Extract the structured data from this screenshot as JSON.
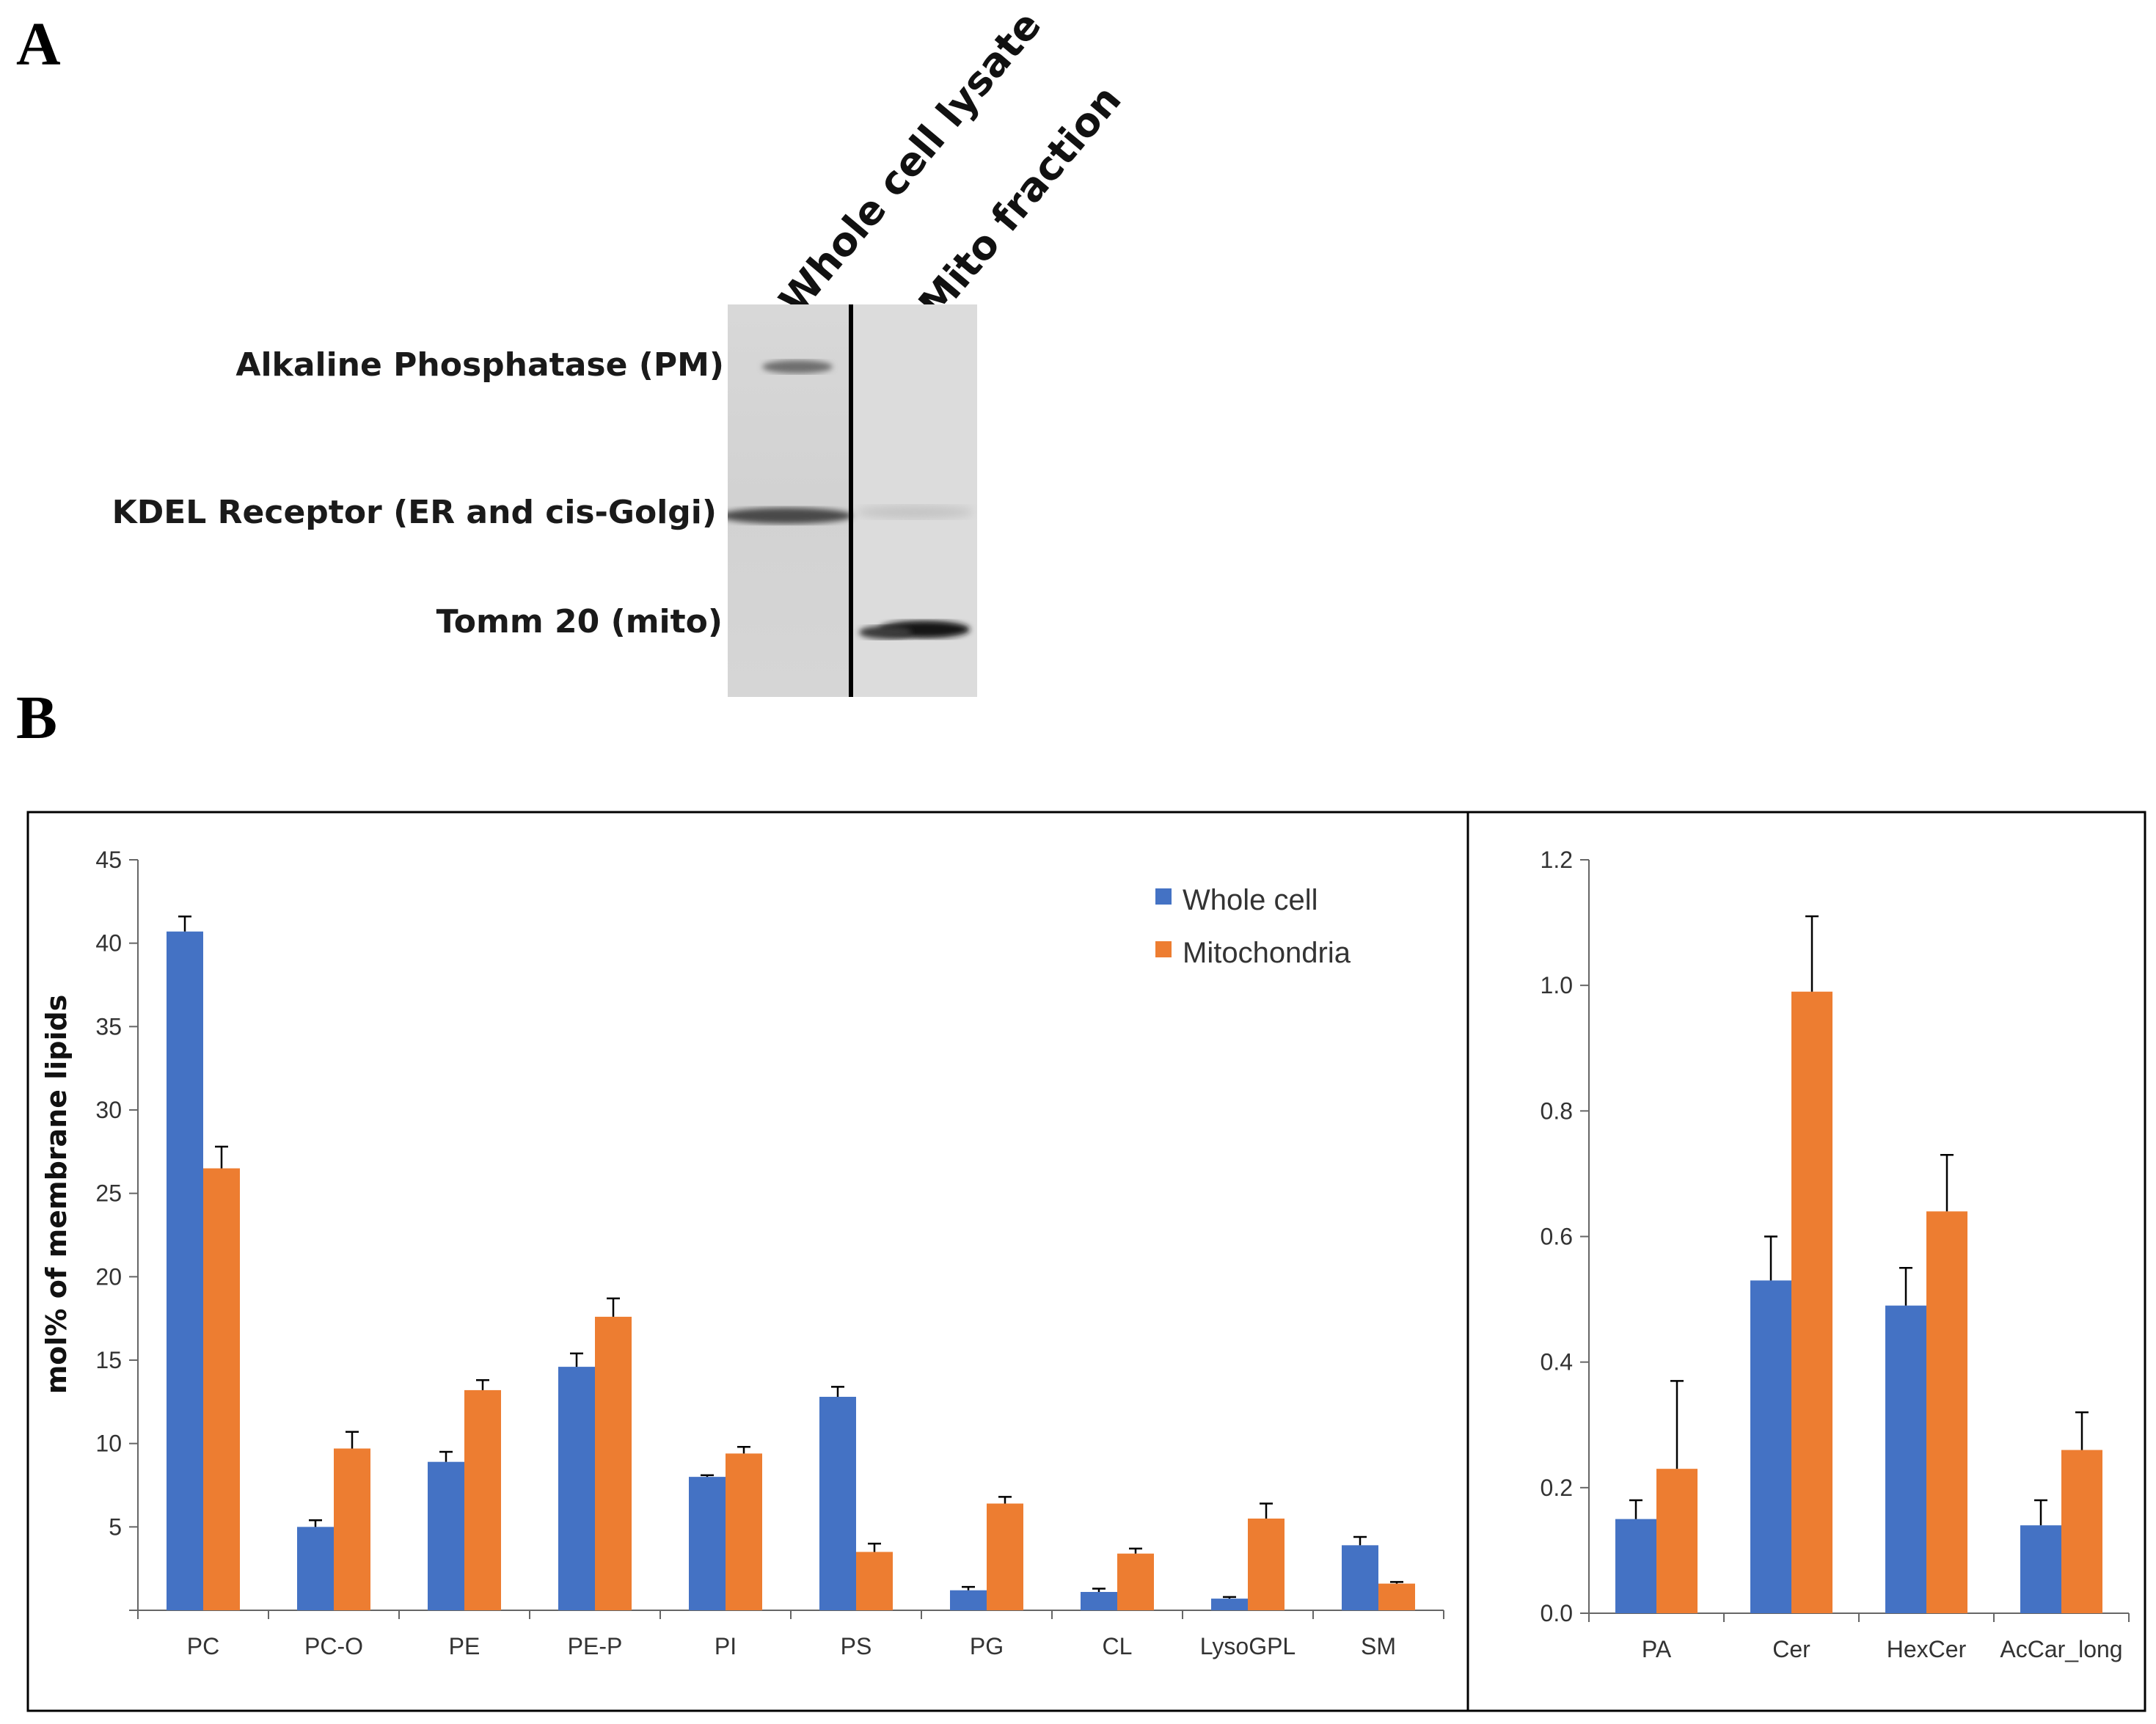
{
  "panel_a": {
    "letter": "A",
    "lanes": [
      "Whole cell lysate",
      "Mito fraction"
    ],
    "bands": [
      "Alkaline  Phosphatase (PM)",
      "KDEL  Receptor (ER and cis-Golgi)",
      "Tomm 20 (mito)"
    ]
  },
  "panel_b": {
    "letter": "B"
  },
  "colors": {
    "whole_cell": "#4472C4",
    "mitochondria": "#ED7D31"
  },
  "chart_data": [
    {
      "type": "bar",
      "title": "",
      "xlabel": "",
      "ylabel": "mol% of membrane lipids",
      "ylim": [
        0,
        45
      ],
      "yticks": [
        "",
        "5",
        "10",
        "15",
        "20",
        "25",
        "30",
        "35",
        "40",
        "45"
      ],
      "categories": [
        "PC",
        "PC-O",
        "PE",
        "PE-P",
        "PI",
        "PS",
        "PG",
        "CL",
        "LysoGPL",
        "SM"
      ],
      "series": [
        {
          "name": "Whole cell",
          "values": [
            40.7,
            5.0,
            8.9,
            14.6,
            8.0,
            12.8,
            1.2,
            1.1,
            0.7,
            3.9
          ],
          "errors": [
            0.9,
            0.4,
            0.6,
            0.8,
            0.1,
            0.6,
            0.2,
            0.2,
            0.1,
            0.5
          ]
        },
        {
          "name": "Mitochondria",
          "values": [
            26.5,
            9.7,
            13.2,
            17.6,
            9.4,
            3.5,
            6.4,
            3.4,
            5.5,
            1.6
          ],
          "errors": [
            1.3,
            1.0,
            0.6,
            1.1,
            0.4,
            0.5,
            0.4,
            0.3,
            0.9,
            0.1
          ]
        }
      ],
      "legend": "top-right"
    },
    {
      "type": "bar",
      "title": "",
      "xlabel": "",
      "ylabel": "",
      "ylim": [
        0,
        1.2
      ],
      "yticks": [
        "0.0",
        "0.2",
        "0.4",
        "0.6",
        "0.8",
        "1.0",
        "1.2"
      ],
      "categories": [
        "PA",
        "Cer",
        "HexCer",
        "AcCar_long"
      ],
      "series": [
        {
          "name": "Whole cell",
          "values": [
            0.15,
            0.53,
            0.49,
            0.14
          ],
          "errors": [
            0.03,
            0.07,
            0.06,
            0.04
          ]
        },
        {
          "name": "Mitochondria",
          "values": [
            0.23,
            0.99,
            0.64,
            0.26
          ],
          "errors": [
            0.14,
            0.12,
            0.09,
            0.06
          ]
        }
      ]
    }
  ]
}
